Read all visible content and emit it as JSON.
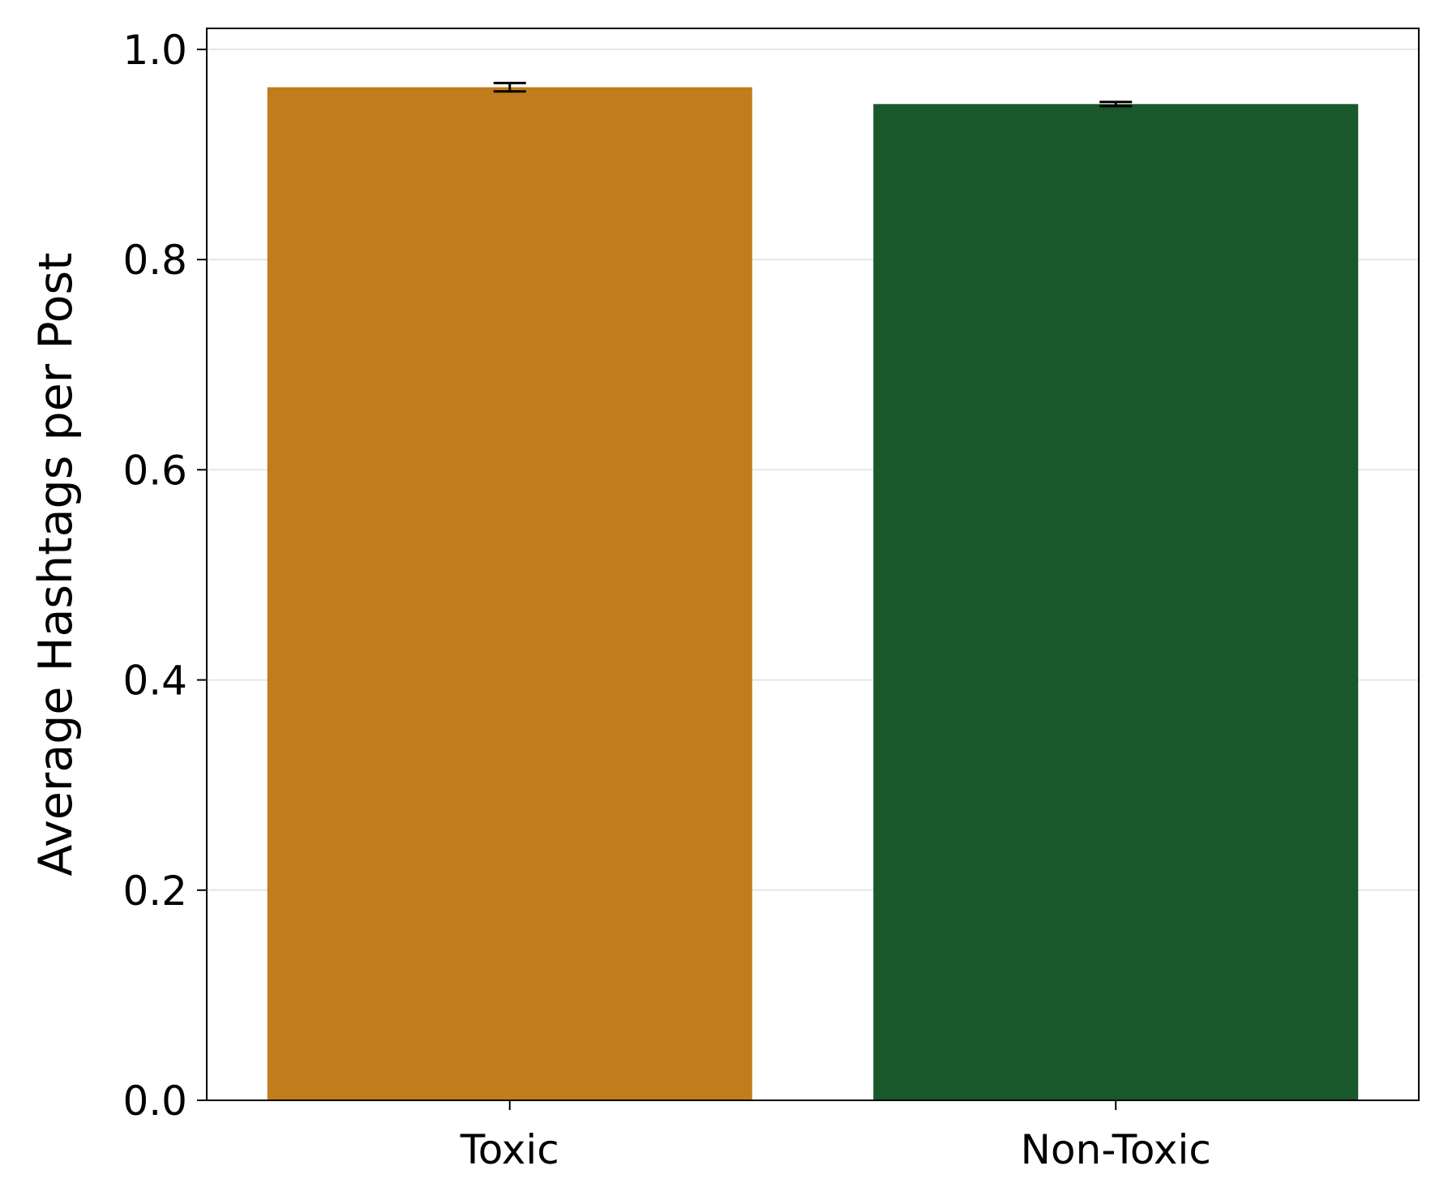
{
  "chart_data": {
    "type": "bar",
    "title": "",
    "xlabel": "",
    "ylabel": "Average Hashtags per Post",
    "categories": [
      "Toxic",
      "Non-Toxic"
    ],
    "values": [
      0.964,
      0.948
    ],
    "errors": [
      0.004,
      0.002
    ],
    "colors": [
      "#c17c1c",
      "#19582a"
    ],
    "ylim": [
      0,
      1.02
    ],
    "yticks": [
      0.0,
      0.2,
      0.4,
      0.6,
      0.8,
      1.0
    ],
    "ytick_labels": [
      "0.0",
      "0.2",
      "0.4",
      "0.6",
      "0.8",
      "1.0"
    ],
    "grid": "horizontal",
    "legend": "none"
  }
}
